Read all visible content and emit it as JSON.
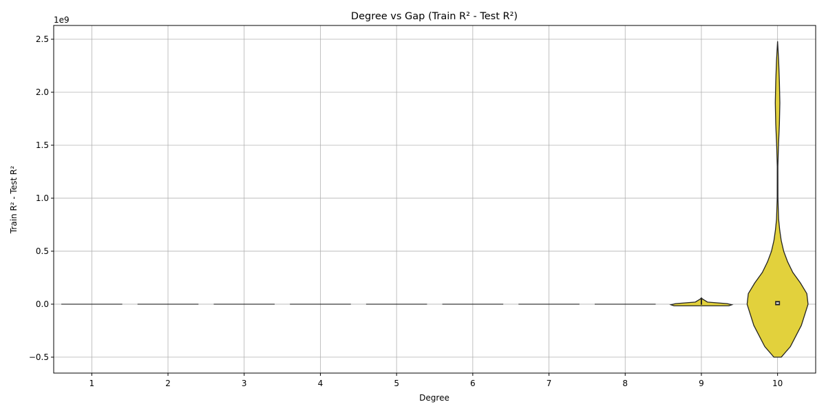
{
  "chart_data": {
    "type": "violin",
    "title": "Degree vs Gap (Train R² - Test R²)",
    "xlabel": "Degree",
    "ylabel": "Train R² - Test R²",
    "y_offset_label": "1e9",
    "categories": [
      "1",
      "2",
      "3",
      "4",
      "5",
      "6",
      "7",
      "8",
      "9",
      "10"
    ],
    "yticks": [
      -0.5,
      0.0,
      0.5,
      1.0,
      1.5,
      2.0,
      2.5
    ],
    "ytick_labels": [
      "−0.5",
      "0.0",
      "0.5",
      "1.0",
      "1.5",
      "2.0",
      "2.5"
    ],
    "ylim": [
      -0.65,
      2.63
    ],
    "grid": true,
    "fill_color": "#e2d13c",
    "edge_color": "#222222",
    "violins": [
      {
        "category": "1",
        "profile": []
      },
      {
        "category": "2",
        "profile": []
      },
      {
        "category": "3",
        "profile": []
      },
      {
        "category": "4",
        "profile": []
      },
      {
        "category": "5",
        "profile": []
      },
      {
        "category": "6",
        "profile": []
      },
      {
        "category": "7",
        "profile": []
      },
      {
        "category": "8",
        "profile": []
      },
      {
        "category": "9",
        "profile": [
          [
            -0.015,
            0.9
          ],
          [
            -0.005,
            1.0
          ],
          [
            0.005,
            0.85
          ],
          [
            0.02,
            0.2
          ],
          [
            0.05,
            0.03
          ],
          [
            0.06,
            0.0
          ]
        ]
      },
      {
        "category": "10",
        "profile": [
          [
            -0.5,
            0.12
          ],
          [
            -0.4,
            0.42
          ],
          [
            -0.2,
            0.78
          ],
          [
            0.0,
            1.0
          ],
          [
            0.1,
            0.96
          ],
          [
            0.2,
            0.75
          ],
          [
            0.3,
            0.5
          ],
          [
            0.4,
            0.33
          ],
          [
            0.5,
            0.2
          ],
          [
            0.6,
            0.12
          ],
          [
            0.7,
            0.07
          ],
          [
            0.8,
            0.035
          ],
          [
            1.0,
            0.012
          ],
          [
            1.3,
            0.01
          ],
          [
            1.5,
            0.03
          ],
          [
            1.7,
            0.06
          ],
          [
            1.9,
            0.075
          ],
          [
            2.1,
            0.06
          ],
          [
            2.3,
            0.035
          ],
          [
            2.48,
            0.0
          ]
        ]
      }
    ],
    "box_10": {
      "q1": -0.01,
      "q3": 0.03,
      "median": 0.01
    }
  }
}
